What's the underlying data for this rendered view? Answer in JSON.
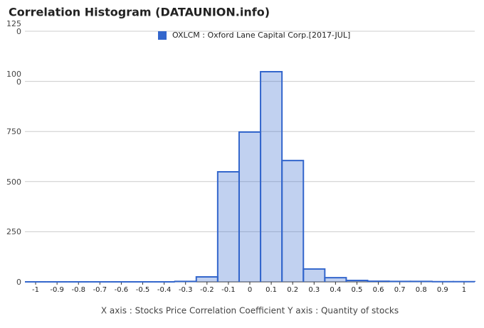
{
  "chart_data": {
    "type": "histogram",
    "title": "Correlation Histogram (DATAUNION.info)",
    "x_label": "X axis : Stocks Price Correlation Coefficient  Y axis : Quantity of stocks",
    "series": [
      {
        "name": "OXLCM : Oxford Lane Capital Corp.[2017-JUL]",
        "color": "#3366cc",
        "bins": [
          -1.05,
          -0.95,
          -0.85,
          -0.75,
          -0.65,
          -0.55,
          -0.45,
          -0.35,
          -0.25,
          -0.15,
          -0.05,
          0.05,
          0.15,
          0.25,
          0.35,
          0.45,
          0.55,
          0.65,
          0.75,
          0.85,
          0.95,
          1.05
        ],
        "values": [
          0,
          0,
          0,
          0,
          0,
          0,
          0,
          2,
          25,
          549,
          747,
          1048,
          605,
          64,
          21,
          7,
          3,
          2,
          2,
          1,
          1
        ]
      }
    ],
    "xlim": [
      -1.05,
      1.05
    ],
    "xticks": [
      -1,
      -0.9,
      -0.8,
      -0.7,
      -0.6,
      -0.5,
      -0.4,
      -0.3,
      -0.2,
      -0.1,
      0,
      0.1,
      0.2,
      0.3,
      0.4,
      0.5,
      0.6,
      0.7,
      0.8,
      0.9,
      1
    ],
    "ylim": [
      0,
      1250
    ],
    "yticks": [
      0,
      250,
      500,
      750,
      1000,
      1250
    ],
    "grid": true
  }
}
